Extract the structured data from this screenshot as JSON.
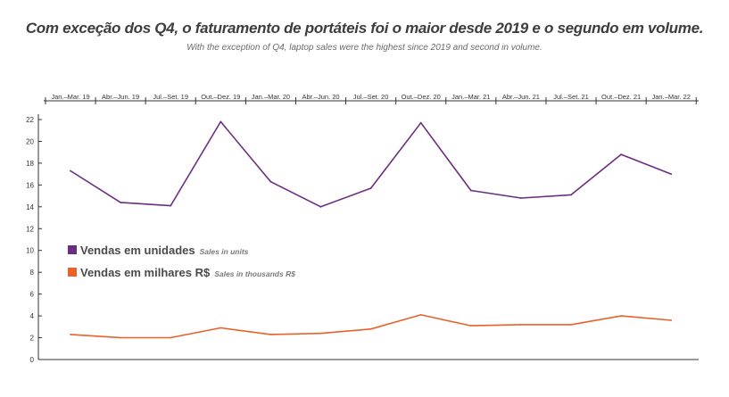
{
  "title": "Com exceção dos Q4, o faturamento de portáteis foi o maior desde 2019 e o segundo em volume.",
  "subtitle": "With the exception of Q4, laptop sales were the highest since 2019 and second in volume.",
  "chart_data": {
    "type": "line",
    "categories": [
      "Jan.–Mar. 19",
      "Abr.–Jun. 19",
      "Jul.–Set. 19",
      "Out.–Dez. 19",
      "Jan.–Mar. 20",
      "Abr.–Jun. 20",
      "Jul.–Set. 20",
      "Out.–Dez. 20",
      "Jan.–Mar. 21",
      "Abr.–Jun. 21",
      "Jul.–Set. 21",
      "Out.–Dez. 21",
      "Jan.–Mar. 22"
    ],
    "ylim": [
      0,
      22
    ],
    "yticks": [
      0,
      2,
      4,
      6,
      8,
      10,
      12,
      14,
      16,
      18,
      20,
      22
    ],
    "grid": false,
    "legend_position": "middle-left",
    "series": [
      {
        "name": "Vendas em unidades",
        "name_en": "Sales in units",
        "color": "#6b2c82",
        "values": [
          17.3,
          14.4,
          14.1,
          21.8,
          16.3,
          14.0,
          15.7,
          21.7,
          15.5,
          14.8,
          15.1,
          18.8,
          17.0
        ]
      },
      {
        "name": "Vendas em milhares R$",
        "name_en": "Sales in thousands R$",
        "color": "#e8622a",
        "values": [
          2.3,
          2.0,
          2.0,
          2.9,
          2.3,
          2.4,
          2.8,
          4.1,
          3.1,
          3.2,
          3.2,
          4.0,
          3.6
        ]
      }
    ]
  }
}
